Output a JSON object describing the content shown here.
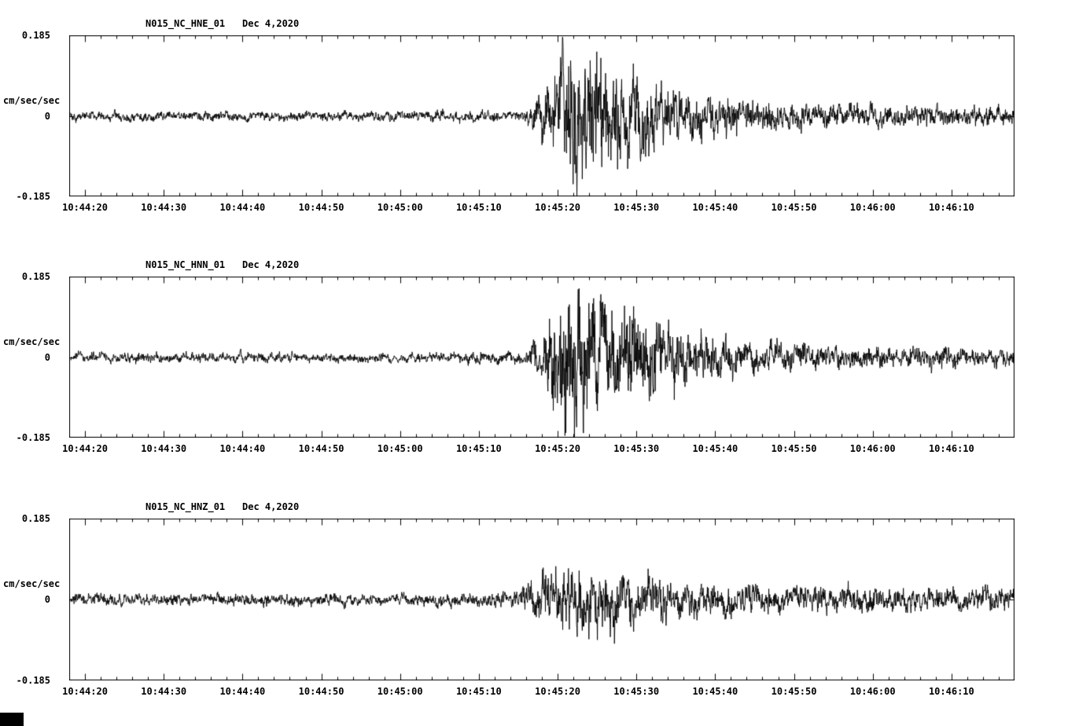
{
  "page": {
    "background": "#ffffff",
    "foreground": "#000000"
  },
  "chart_data": [
    {
      "type": "line",
      "id": "HNE",
      "title": "N015_NC_HNE_01",
      "date": "Dec 4,2020",
      "ylabel": "cm/sec/sec",
      "y_ticks": [
        "0.185",
        "0",
        "-0.185"
      ],
      "ylim": [
        -0.185,
        0.185
      ],
      "duration_s": 120,
      "x_start_time": "10:44:18",
      "x_minor_step_s": 2,
      "event_onset": "10:45:17",
      "peak_amplitude": 0.155,
      "x_ticks": [
        {
          "label": "10:44:20",
          "t": 2
        },
        {
          "label": "10:44:30",
          "t": 12
        },
        {
          "label": "10:44:40",
          "t": 22
        },
        {
          "label": "10:44:50",
          "t": 32
        },
        {
          "label": "10:45:00",
          "t": 42
        },
        {
          "label": "10:45:10",
          "t": 52
        },
        {
          "label": "10:45:20",
          "t": 62
        },
        {
          "label": "10:45:30",
          "t": 72
        },
        {
          "label": "10:45:40",
          "t": 82
        },
        {
          "label": "10:45:50",
          "t": 92
        },
        {
          "label": "10:46:00",
          "t": 102
        },
        {
          "label": "10:46:10",
          "t": 112
        }
      ],
      "envelope": [
        [
          0,
          0.01
        ],
        [
          40,
          0.01
        ],
        [
          55,
          0.011
        ],
        [
          58,
          0.012
        ],
        [
          59,
          0.035
        ],
        [
          60,
          0.05
        ],
        [
          61,
          0.07
        ],
        [
          62,
          0.1
        ],
        [
          63,
          0.155
        ],
        [
          65,
          0.145
        ],
        [
          66,
          0.12
        ],
        [
          67,
          0.14
        ],
        [
          68,
          0.12
        ],
        [
          69,
          0.1
        ],
        [
          71,
          0.11
        ],
        [
          72,
          0.09
        ],
        [
          74,
          0.07
        ],
        [
          76,
          0.06
        ],
        [
          78,
          0.05
        ],
        [
          80,
          0.045
        ],
        [
          82,
          0.05
        ],
        [
          84,
          0.04
        ],
        [
          86,
          0.03
        ],
        [
          88,
          0.032
        ],
        [
          90,
          0.026
        ],
        [
          93,
          0.028
        ],
        [
          96,
          0.022
        ],
        [
          100,
          0.024
        ],
        [
          104,
          0.02
        ],
        [
          108,
          0.022
        ],
        [
          112,
          0.019
        ],
        [
          116,
          0.02
        ],
        [
          120,
          0.018
        ]
      ]
    },
    {
      "type": "line",
      "id": "HNN",
      "title": "N015_NC_HNN_01",
      "date": "Dec 4,2020",
      "ylabel": "cm/sec/sec",
      "y_ticks": [
        "0.185",
        "0",
        "-0.185"
      ],
      "ylim": [
        -0.185,
        0.185
      ],
      "duration_s": 120,
      "x_start_time": "10:44:18",
      "x_minor_step_s": 2,
      "event_onset": "10:45:17",
      "peak_amplitude": 0.18,
      "x_ticks": [
        {
          "label": "10:44:20",
          "t": 2
        },
        {
          "label": "10:44:30",
          "t": 12
        },
        {
          "label": "10:44:40",
          "t": 22
        },
        {
          "label": "10:44:50",
          "t": 32
        },
        {
          "label": "10:45:00",
          "t": 42
        },
        {
          "label": "10:45:10",
          "t": 52
        },
        {
          "label": "10:45:20",
          "t": 62
        },
        {
          "label": "10:45:30",
          "t": 72
        },
        {
          "label": "10:45:40",
          "t": 82
        },
        {
          "label": "10:45:50",
          "t": 92
        },
        {
          "label": "10:46:00",
          "t": 102
        },
        {
          "label": "10:46:10",
          "t": 112
        }
      ],
      "envelope": [
        [
          0,
          0.01
        ],
        [
          40,
          0.01
        ],
        [
          55,
          0.011
        ],
        [
          58,
          0.013
        ],
        [
          59,
          0.04
        ],
        [
          60,
          0.06
        ],
        [
          61,
          0.09
        ],
        [
          62,
          0.12
        ],
        [
          63,
          0.18
        ],
        [
          64,
          0.175
        ],
        [
          65,
          0.15
        ],
        [
          66,
          0.13
        ],
        [
          67,
          0.12
        ],
        [
          68,
          0.1
        ],
        [
          69,
          0.11
        ],
        [
          70,
          0.09
        ],
        [
          72,
          0.1
        ],
        [
          74,
          0.08
        ],
        [
          76,
          0.065
        ],
        [
          78,
          0.055
        ],
        [
          80,
          0.05
        ],
        [
          82,
          0.045
        ],
        [
          84,
          0.04
        ],
        [
          86,
          0.035
        ],
        [
          88,
          0.03
        ],
        [
          90,
          0.028
        ],
        [
          94,
          0.025
        ],
        [
          98,
          0.022
        ],
        [
          102,
          0.024
        ],
        [
          106,
          0.02
        ],
        [
          110,
          0.022
        ],
        [
          115,
          0.019
        ],
        [
          120,
          0.018
        ]
      ]
    },
    {
      "type": "line",
      "id": "HNZ",
      "title": "N015_NC_HNZ_01",
      "date": "Dec 4,2020",
      "ylabel": "cm/sec/sec",
      "y_ticks": [
        "0.185",
        "0",
        "-0.185"
      ],
      "ylim": [
        -0.185,
        0.185
      ],
      "duration_s": 120,
      "x_start_time": "10:44:18",
      "x_minor_step_s": 2,
      "event_onset": "10:45:17",
      "peak_amplitude": 0.07,
      "x_ticks": [
        {
          "label": "10:44:20",
          "t": 2
        },
        {
          "label": "10:44:30",
          "t": 12
        },
        {
          "label": "10:44:40",
          "t": 22
        },
        {
          "label": "10:44:50",
          "t": 32
        },
        {
          "label": "10:45:00",
          "t": 42
        },
        {
          "label": "10:45:10",
          "t": 52
        },
        {
          "label": "10:45:20",
          "t": 62
        },
        {
          "label": "10:45:30",
          "t": 72
        },
        {
          "label": "10:45:40",
          "t": 82
        },
        {
          "label": "10:45:50",
          "t": 92
        },
        {
          "label": "10:46:00",
          "t": 102
        },
        {
          "label": "10:46:10",
          "t": 112
        }
      ],
      "envelope": [
        [
          0,
          0.012
        ],
        [
          40,
          0.012
        ],
        [
          50,
          0.013
        ],
        [
          57,
          0.014
        ],
        [
          58,
          0.03
        ],
        [
          59,
          0.045
        ],
        [
          60,
          0.055
        ],
        [
          61,
          0.06
        ],
        [
          62,
          0.07
        ],
        [
          63,
          0.065
        ],
        [
          64,
          0.07
        ],
        [
          65,
          0.06
        ],
        [
          67,
          0.055
        ],
        [
          69,
          0.06
        ],
        [
          71,
          0.05
        ],
        [
          73,
          0.045
        ],
        [
          75,
          0.05
        ],
        [
          77,
          0.04
        ],
        [
          80,
          0.035
        ],
        [
          83,
          0.03
        ],
        [
          86,
          0.028
        ],
        [
          89,
          0.03
        ],
        [
          92,
          0.026
        ],
        [
          95,
          0.028
        ],
        [
          98,
          0.024
        ],
        [
          102,
          0.026
        ],
        [
          106,
          0.022
        ],
        [
          110,
          0.024
        ],
        [
          114,
          0.021
        ],
        [
          118,
          0.022
        ],
        [
          120,
          0.02
        ]
      ]
    }
  ]
}
